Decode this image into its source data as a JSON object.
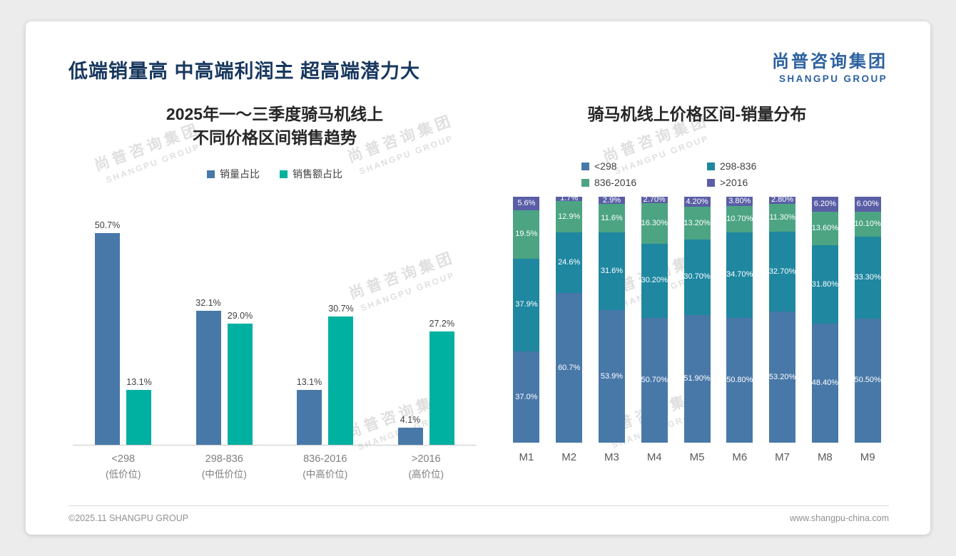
{
  "slide": {
    "title": "低端销量高 中高端利润主 超高端潜力大",
    "logo": {
      "cn": "尚普咨询集团",
      "en": "SHANGPU GROUP"
    },
    "watermark": {
      "cn": "尚普咨询集团",
      "en": "SHANGPU GROUP"
    },
    "footer": {
      "left": "©2025.11 SHANGPU GROUP",
      "right": "www.shangpu-china.com"
    }
  },
  "colors": {
    "title_navy": "#17375e",
    "logo_blue": "#2d619f",
    "bar_blue": "#4878a8",
    "bar_teal": "#00b0a0",
    "stack_blue": "#4878a8",
    "stack_teal": "#1f87a0",
    "stack_green": "#4ca483",
    "stack_purple": "#5a5ea6"
  },
  "chart_data": [
    {
      "type": "bar",
      "title": "2025年一～三季度骑马机线上 不同价格区间销售趋势",
      "title_lines": [
        "2025年一～三季度骑马机线上",
        "不同价格区间销售趋势"
      ],
      "categories": [
        "<298",
        "298-836",
        "836-2016",
        ">2016"
      ],
      "category_sublabels": [
        "(低价位)",
        "(中低价位)",
        "(中高价位)",
        "(高价位)"
      ],
      "series": [
        {
          "name": "销量占比",
          "color": "#4878a8",
          "values": [
            50.7,
            32.1,
            13.1,
            4.1
          ],
          "labels": [
            "50.7%",
            "32.1%",
            "13.1%",
            "4.1%"
          ]
        },
        {
          "name": "销售额占比",
          "color": "#00b0a0",
          "values": [
            13.1,
            29.0,
            30.7,
            27.2
          ],
          "labels": [
            "13.1%",
            "29.0%",
            "30.7%",
            "27.2%"
          ]
        }
      ],
      "ylim": [
        0,
        55
      ],
      "grid": false,
      "legend_position": "top",
      "value_labels": true
    },
    {
      "type": "bar",
      "stacked": true,
      "stacked_total": 100,
      "title": "骑马机线上价格区间-销量分布",
      "categories": [
        "M1",
        "M2",
        "M3",
        "M4",
        "M5",
        "M6",
        "M7",
        "M8",
        "M9"
      ],
      "series": [
        {
          "name": "<298",
          "color": "#4878a8",
          "values": [
            37.0,
            60.7,
            53.9,
            50.7,
            51.9,
            50.8,
            53.2,
            48.4,
            50.5
          ],
          "labels": [
            "37.0%",
            "60.7%",
            "53.9%",
            "50.70%",
            "51.90%",
            "50.80%",
            "53.20%",
            "48.40%",
            "50.50%"
          ]
        },
        {
          "name": "298-836",
          "color": "#1f87a0",
          "values": [
            37.9,
            24.6,
            31.6,
            30.2,
            30.7,
            34.7,
            32.7,
            31.8,
            33.3
          ],
          "labels": [
            "37.9%",
            "24.6%",
            "31.6%",
            "30.20%",
            "30.70%",
            "34.70%",
            "32.70%",
            "31.80%",
            "33.30%"
          ]
        },
        {
          "name": "836-2016",
          "color": "#4ca483",
          "values": [
            19.5,
            12.9,
            11.6,
            16.3,
            13.2,
            10.7,
            11.3,
            13.6,
            10.1
          ],
          "labels": [
            "19.5%",
            "12.9%",
            "11.6%",
            "16.30%",
            "13.20%",
            "10.70%",
            "11.30%",
            "13.60%",
            "10.10%"
          ]
        },
        {
          "name": ">2016",
          "color": "#5a5ea6",
          "values": [
            5.6,
            1.7,
            2.9,
            2.7,
            4.2,
            3.8,
            2.8,
            6.2,
            6.0
          ],
          "labels": [
            "5.6%",
            "1.7%",
            "2.9%",
            "2.70%",
            "4.20%",
            "3.80%",
            "2.80%",
            "6.20%",
            "6.00%"
          ]
        }
      ],
      "ylim": [
        0,
        100
      ],
      "grid": false,
      "legend_position": "top",
      "value_labels": true
    }
  ]
}
